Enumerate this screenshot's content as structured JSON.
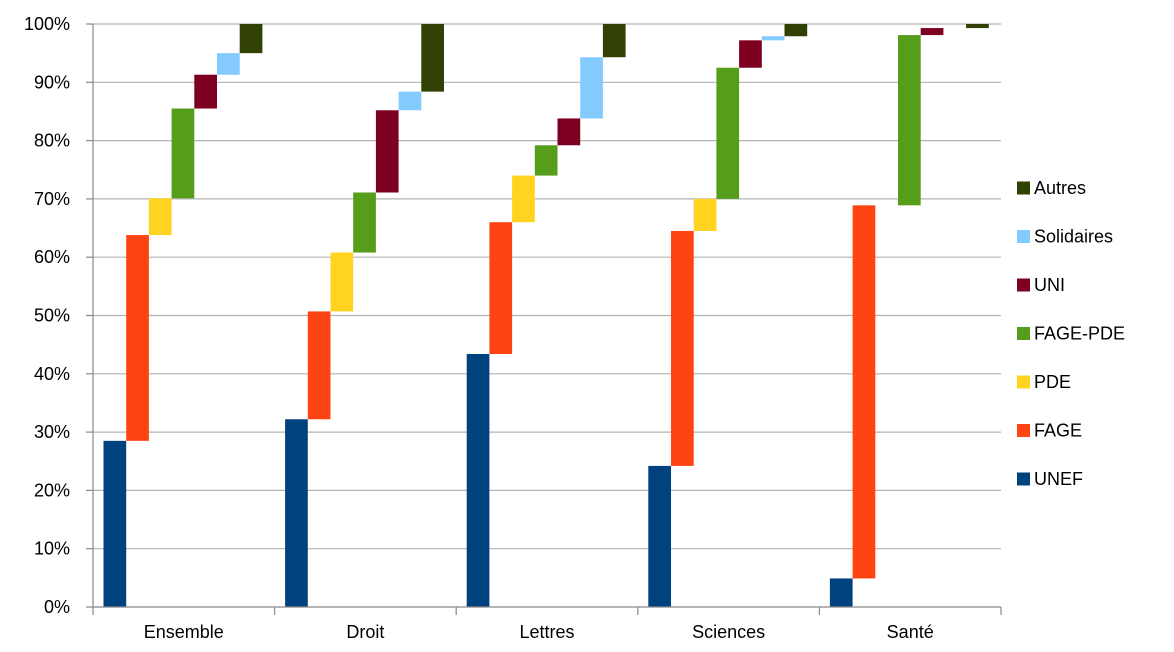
{
  "chart_data": {
    "type": "bar",
    "stacked": true,
    "style": "floating waterfall segments, each series offset to the right within its category",
    "categories": [
      "Ensemble",
      "Droit",
      "Lettres",
      "Sciences",
      "Santé"
    ],
    "series": [
      {
        "name": "UNEF",
        "color": "#00427E",
        "values": [
          28.5,
          32.2,
          43.4,
          24.2,
          4.9
        ]
      },
      {
        "name": "FAGE",
        "color": "#FF4413",
        "values": [
          35.3,
          18.5,
          22.6,
          40.3,
          64.0
        ]
      },
      {
        "name": "PDE",
        "color": "#FFD320",
        "values": [
          6.3,
          10.1,
          8.0,
          5.5,
          0.0
        ]
      },
      {
        "name": "FAGE-PDE",
        "color": "#579D1C",
        "values": [
          15.4,
          10.3,
          5.2,
          22.5,
          29.2
        ]
      },
      {
        "name": "UNI",
        "color": "#7E0021",
        "values": [
          5.8,
          14.1,
          4.6,
          4.7,
          1.2
        ]
      },
      {
        "name": "Solidaires",
        "color": "#83CAFF",
        "values": [
          3.7,
          3.2,
          10.5,
          0.7,
          0.0
        ]
      },
      {
        "name": "Autres",
        "color": "#314004",
        "values": [
          5.0,
          11.6,
          5.7,
          2.1,
          0.7
        ]
      }
    ],
    "y_ticks": [
      "0%",
      "10%",
      "20%",
      "30%",
      "40%",
      "50%",
      "60%",
      "70%",
      "80%",
      "90%",
      "100%"
    ],
    "ylim": [
      0,
      100
    ],
    "grid": true,
    "legend_order": [
      "Autres",
      "Solidaires",
      "UNI",
      "FAGE-PDE",
      "PDE",
      "FAGE",
      "UNEF"
    ],
    "legend_position": "right",
    "gridline_color": "#b3b3b3",
    "axis_color": "#898989"
  }
}
